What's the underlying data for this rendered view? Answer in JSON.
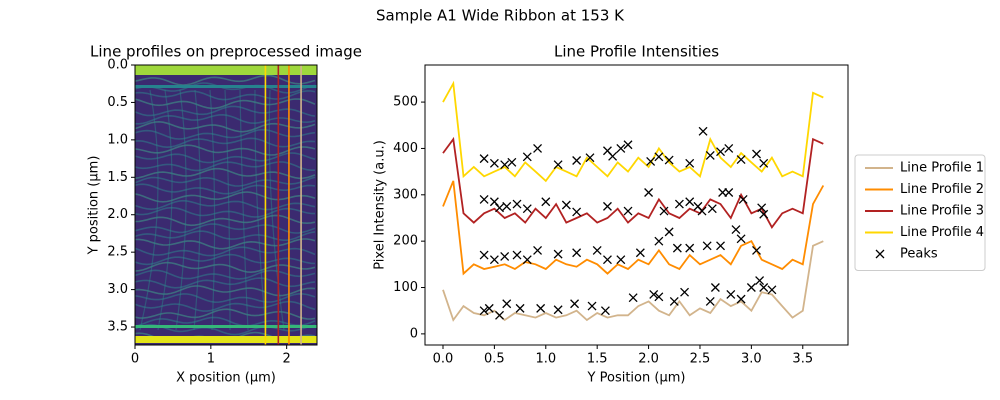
{
  "title": "Sample A1 Wide Ribbon at 153 K",
  "chart_data": [
    {
      "type": "image",
      "title": "Line profiles on preprocessed image",
      "xlabel": "X position (µm)",
      "ylabel": "Y position (µm)",
      "xlim": [
        0,
        2.4
      ],
      "ylim": [
        0,
        3.74
      ],
      "invert_y": true,
      "xticks": [
        0,
        1,
        2
      ],
      "yticks": [
        {
          "value": 0,
          "label": "0.0"
        },
        {
          "value": 0.5,
          "label": "0.5"
        },
        {
          "value": 1,
          "label": "1.0"
        },
        {
          "value": 1.5,
          "label": "1.5"
        },
        {
          "value": 2,
          "label": "2.0"
        },
        {
          "value": 2.5,
          "label": "2.5"
        },
        {
          "value": 3,
          "label": "3.0"
        },
        {
          "value": 3.5,
          "label": "3.5"
        }
      ],
      "lines": [
        {
          "x": 1.72,
          "color": "#ffd700"
        },
        {
          "x": 1.89,
          "color": "#b22222"
        },
        {
          "x": 2.03,
          "color": "#ff8c00"
        },
        {
          "x": 2.19,
          "color": "#d2b48c"
        }
      ]
    },
    {
      "type": "line",
      "title": "Line Profile Intensities",
      "xlabel": "Y Position (µm)",
      "ylabel": "Pixel Intensity (a.u.)",
      "xlim": [
        -0.175,
        3.94
      ],
      "ylim": [
        -24,
        580
      ],
      "xticks": [
        {
          "value": 0,
          "label": "0.0"
        },
        {
          "value": 0.5,
          "label": "0.5"
        },
        {
          "value": 1,
          "label": "1.0"
        },
        {
          "value": 1.5,
          "label": "1.5"
        },
        {
          "value": 2,
          "label": "2.0"
        },
        {
          "value": 2.5,
          "label": "2.5"
        },
        {
          "value": 3,
          "label": "3.0"
        },
        {
          "value": 3.5,
          "label": "3.5"
        }
      ],
      "yticks": [
        0,
        100,
        200,
        300,
        400,
        500
      ],
      "legend": "right",
      "x": [
        0.0,
        0.1,
        0.2,
        0.3,
        0.4,
        0.5,
        0.6,
        0.7,
        0.8,
        0.9,
        1.0,
        1.1,
        1.2,
        1.3,
        1.4,
        1.5,
        1.6,
        1.7,
        1.8,
        1.9,
        2.0,
        2.1,
        2.2,
        2.3,
        2.4,
        2.5,
        2.6,
        2.7,
        2.8,
        2.9,
        3.0,
        3.1,
        3.2,
        3.3,
        3.4,
        3.5,
        3.6,
        3.7
      ],
      "series": [
        {
          "name": "Line Profile 1",
          "color": "#d2b48c",
          "values": [
            95,
            30,
            60,
            45,
            40,
            50,
            30,
            45,
            40,
            35,
            45,
            35,
            40,
            50,
            30,
            45,
            35,
            40,
            40,
            60,
            70,
            50,
            40,
            70,
            40,
            55,
            45,
            75,
            60,
            70,
            50,
            90,
            85,
            60,
            35,
            50,
            190,
            200
          ]
        },
        {
          "name": "Line Profile 2",
          "color": "#ff8c00",
          "values": [
            275,
            330,
            130,
            150,
            140,
            145,
            150,
            140,
            155,
            150,
            140,
            160,
            150,
            145,
            160,
            150,
            130,
            150,
            140,
            160,
            150,
            180,
            150,
            140,
            170,
            150,
            160,
            170,
            150,
            190,
            200,
            160,
            150,
            140,
            160,
            150,
            280,
            320
          ]
        },
        {
          "name": "Line Profile 3",
          "color": "#b22222",
          "values": [
            390,
            420,
            260,
            240,
            260,
            270,
            250,
            260,
            240,
            270,
            250,
            280,
            240,
            250,
            260,
            240,
            250,
            270,
            240,
            260,
            250,
            290,
            260,
            250,
            270,
            260,
            290,
            280,
            250,
            300,
            260,
            270,
            230,
            260,
            270,
            260,
            420,
            410
          ]
        },
        {
          "name": "Line Profile 4",
          "color": "#ffd700",
          "values": [
            500,
            540,
            340,
            360,
            340,
            350,
            360,
            340,
            370,
            350,
            330,
            360,
            350,
            340,
            380,
            360,
            340,
            370,
            350,
            380,
            360,
            400,
            370,
            350,
            360,
            340,
            420,
            380,
            360,
            390,
            370,
            350,
            380,
            340,
            350,
            340,
            520,
            510
          ]
        },
        {
          "name": "Peaks",
          "color": "#000000",
          "marker": "x",
          "x": [
            0.4,
            0.45,
            0.55,
            0.62,
            0.75,
            0.95,
            1.12,
            1.28,
            1.45,
            1.58,
            1.85,
            2.05,
            2.1,
            2.25,
            2.35,
            2.6,
            2.65,
            2.8,
            2.9,
            3.0,
            3.08,
            3.12,
            3.2,
            0.4,
            0.5,
            0.6,
            0.72,
            0.82,
            0.92,
            1.12,
            1.3,
            1.5,
            1.6,
            1.73,
            1.92,
            2.1,
            2.2,
            2.28,
            2.4,
            2.57,
            2.7,
            2.85,
            2.9,
            3.05,
            0.4,
            0.5,
            0.55,
            0.62,
            0.72,
            0.82,
            1.0,
            1.2,
            1.3,
            1.6,
            1.8,
            2.0,
            2.15,
            2.3,
            2.4,
            2.48,
            2.52,
            2.62,
            2.72,
            2.78,
            2.92,
            3.1,
            3.12,
            0.4,
            0.5,
            0.6,
            0.67,
            0.82,
            0.92,
            1.12,
            1.3,
            1.43,
            1.6,
            1.65,
            1.73,
            1.8,
            2.02,
            2.1,
            2.2,
            2.4,
            2.53,
            2.6,
            2.7,
            2.78,
            2.9,
            3.05,
            3.12
          ],
          "values": [
            50,
            55,
            40,
            65,
            55,
            55,
            52,
            65,
            60,
            50,
            78,
            85,
            80,
            70,
            90,
            70,
            100,
            85,
            75,
            100,
            115,
            100,
            95,
            170,
            160,
            167,
            170,
            160,
            180,
            172,
            175,
            180,
            160,
            160,
            175,
            200,
            220,
            185,
            185,
            190,
            190,
            225,
            205,
            180,
            290,
            285,
            272,
            275,
            280,
            270,
            285,
            278,
            263,
            275,
            265,
            305,
            265,
            280,
            285,
            275,
            265,
            270,
            305,
            305,
            290,
            272,
            258,
            378,
            368,
            365,
            370,
            382,
            400,
            365,
            374,
            380,
            395,
            383,
            400,
            408,
            372,
            382,
            375,
            368,
            437,
            385,
            393,
            400,
            376,
            388,
            368
          ]
        }
      ]
    }
  ]
}
